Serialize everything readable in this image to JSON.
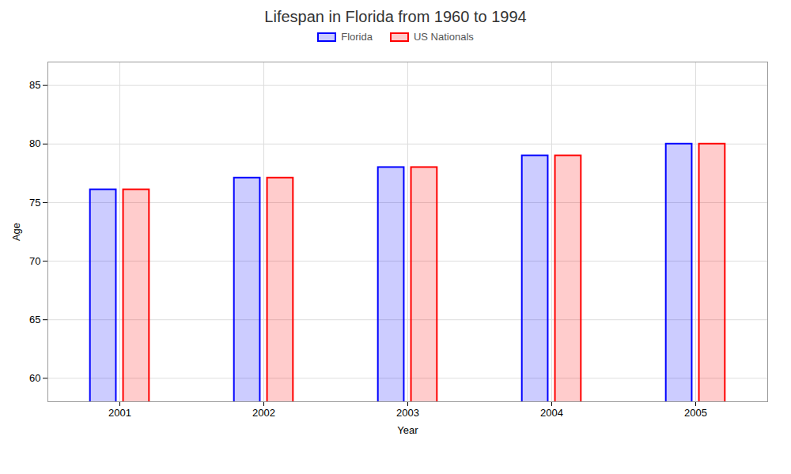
{
  "chart_data": {
    "type": "bar",
    "title": "Lifespan in Florida from 1960 to 1994",
    "xlabel": "Year",
    "ylabel": "Age",
    "categories": [
      "2001",
      "2002",
      "2003",
      "2004",
      "2005"
    ],
    "series": [
      {
        "name": "Florida",
        "color": "#0000ff",
        "values": [
          76.1,
          77.1,
          78.0,
          79.0,
          80.0
        ]
      },
      {
        "name": "US Nationals",
        "color": "#ff0000",
        "values": [
          76.1,
          77.1,
          78.0,
          79.0,
          80.0
        ]
      }
    ],
    "ylim": [
      58,
      87
    ],
    "yticks": [
      60,
      65,
      70,
      75,
      80,
      85
    ],
    "grid": true,
    "legend": "top"
  }
}
